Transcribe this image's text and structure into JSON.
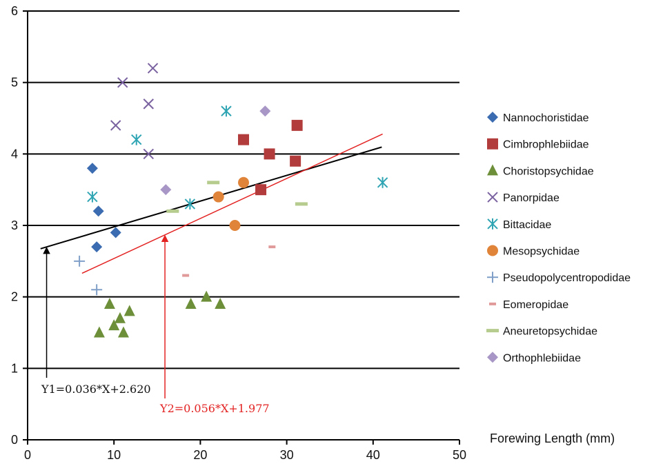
{
  "chart_data": {
    "type": "scatter",
    "title": "",
    "xlabel": "Forewing Length (mm)",
    "ylabel": "",
    "xlim": [
      0,
      50
    ],
    "ylim": [
      0,
      6
    ],
    "x_ticks": [
      0,
      10,
      20,
      30,
      40,
      50
    ],
    "y_ticks": [
      0,
      1,
      2,
      3,
      4,
      5,
      6
    ],
    "grid": "horizontal",
    "legend_position": "right",
    "series": [
      {
        "name": "Nannochoristidae",
        "marker": "diamond",
        "color": "#3b6bb0",
        "points": [
          [
            7.5,
            3.8
          ],
          [
            8.2,
            3.2
          ],
          [
            8.0,
            2.7
          ],
          [
            10.2,
            2.9
          ]
        ]
      },
      {
        "name": "Cimbrophlebiidae",
        "marker": "square",
        "color": "#b23b3b",
        "points": [
          [
            25.0,
            4.2
          ],
          [
            28.0,
            4.0
          ],
          [
            31.2,
            4.4
          ],
          [
            31.0,
            3.9
          ],
          [
            27.0,
            3.5
          ]
        ]
      },
      {
        "name": "Choristopsychidae",
        "marker": "triangle",
        "color": "#6e8f3a",
        "points": [
          [
            9.5,
            1.9
          ],
          [
            10.0,
            1.6
          ],
          [
            10.7,
            1.7
          ],
          [
            11.8,
            1.8
          ],
          [
            8.3,
            1.5
          ],
          [
            11.1,
            1.5
          ],
          [
            18.9,
            1.9
          ],
          [
            20.7,
            2.0
          ],
          [
            22.3,
            1.9
          ]
        ]
      },
      {
        "name": "Panorpidae",
        "marker": "x",
        "color": "#7a62a0",
        "points": [
          [
            14.5,
            5.2
          ],
          [
            11.0,
            5.0
          ],
          [
            14.0,
            4.7
          ],
          [
            10.2,
            4.4
          ],
          [
            14.0,
            4.0
          ]
        ]
      },
      {
        "name": "Bittacidae",
        "marker": "asterisk",
        "color": "#2fa4b3",
        "points": [
          [
            12.6,
            4.2
          ],
          [
            23.0,
            4.6
          ],
          [
            7.5,
            3.4
          ],
          [
            18.8,
            3.3
          ],
          [
            41.1,
            3.6
          ]
        ]
      },
      {
        "name": "Mesopsychidae",
        "marker": "circle",
        "color": "#e0843a",
        "points": [
          [
            25.0,
            3.6
          ],
          [
            22.1,
            3.4
          ],
          [
            24.0,
            3.0
          ]
        ]
      },
      {
        "name": "Pseudopolycentropodidae",
        "marker": "plus",
        "color": "#7f9fc8",
        "points": [
          [
            6.0,
            2.5
          ],
          [
            8.0,
            2.1
          ]
        ]
      },
      {
        "name": "Eomeropidae",
        "marker": "dash",
        "color": "#e09a9a",
        "points": [
          [
            18.3,
            2.3
          ],
          [
            28.3,
            2.7
          ]
        ]
      },
      {
        "name": "Aneuretopsychidae",
        "marker": "bar",
        "color": "#b6cc8e",
        "points": [
          [
            16.8,
            3.2
          ],
          [
            21.5,
            3.6
          ],
          [
            31.7,
            3.3
          ]
        ]
      },
      {
        "name": "Orthophlebiidae",
        "marker": "diamond",
        "color": "#a897c6",
        "points": [
          [
            16.0,
            3.5
          ],
          [
            27.5,
            4.6
          ]
        ]
      }
    ],
    "fit_lines": [
      {
        "label": "Y1=0.036*X+2.620",
        "slope": 0.036,
        "intercept": 2.62,
        "x_range": [
          1.5,
          41
        ],
        "color": "#000000",
        "arrow_x": 2.2,
        "label_color": "#111111"
      },
      {
        "label": "Y2=0.056*X+1.977",
        "slope": 0.056,
        "intercept": 1.977,
        "x_range": [
          6.3,
          41.1
        ],
        "color": "#e32222",
        "arrow_x": 15.9,
        "label_color": "#e32222"
      }
    ]
  }
}
